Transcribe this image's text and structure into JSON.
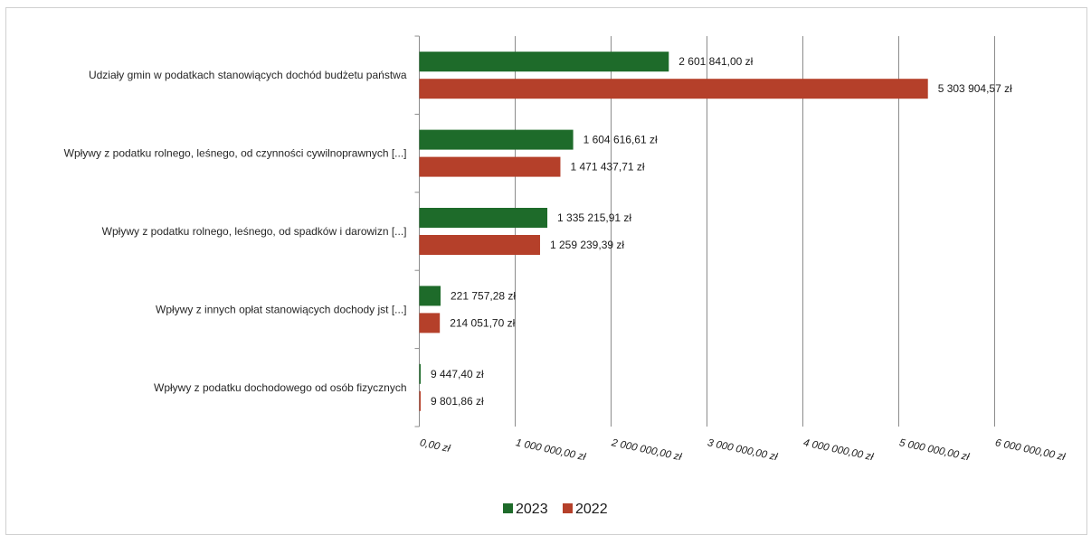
{
  "chart_data": {
    "type": "bar",
    "orientation": "horizontal",
    "categories": [
      "Udziały gmin w podatkach stanowiących dochód budżetu państwa",
      "Wpływy z podatku rolnego, leśnego, od czynności cywilnoprawnych [...]",
      "Wpływy z podatku rolnego, leśnego, od spadków i darowizn [...]",
      "Wpływy z innych opłat stanowiących dochody jst [...]",
      "Wpływy z podatku dochodowego od osób fizycznych"
    ],
    "series": [
      {
        "name": "2023",
        "color": "#1e6b2a",
        "values": [
          2601841.0,
          1604616.61,
          1335215.91,
          221757.28,
          9447.4
        ],
        "labels": [
          "2 601 841,00 zł",
          "1 604 616,61 zł",
          "1 335 215,91 zł",
          "221 757,28 zł",
          "9 447,40 zł"
        ]
      },
      {
        "name": "2022",
        "color": "#b5402a",
        "values": [
          5303904.57,
          1471437.71,
          1259239.39,
          214051.7,
          9801.86
        ],
        "labels": [
          "5 303 904,57 zł",
          "1 471 437,71 zł",
          "1 259 239,39 zł",
          "214 051,70 zł",
          "9 801,86 zł"
        ]
      }
    ],
    "xlim": [
      0,
      6000000
    ],
    "x_ticks": [
      0,
      1000000,
      2000000,
      3000000,
      4000000,
      5000000,
      6000000
    ],
    "x_tick_labels": [
      "0,00 zł",
      "1 000 000,00 zł",
      "2 000 000,00 zł",
      "3 000 000,00 zł",
      "4 000 000,00 zł",
      "5 000 000,00 zł",
      "6 000 000,00 zł"
    ],
    "grid": true,
    "legend": "bottom",
    "title": "",
    "xlabel": "",
    "ylabel": ""
  }
}
